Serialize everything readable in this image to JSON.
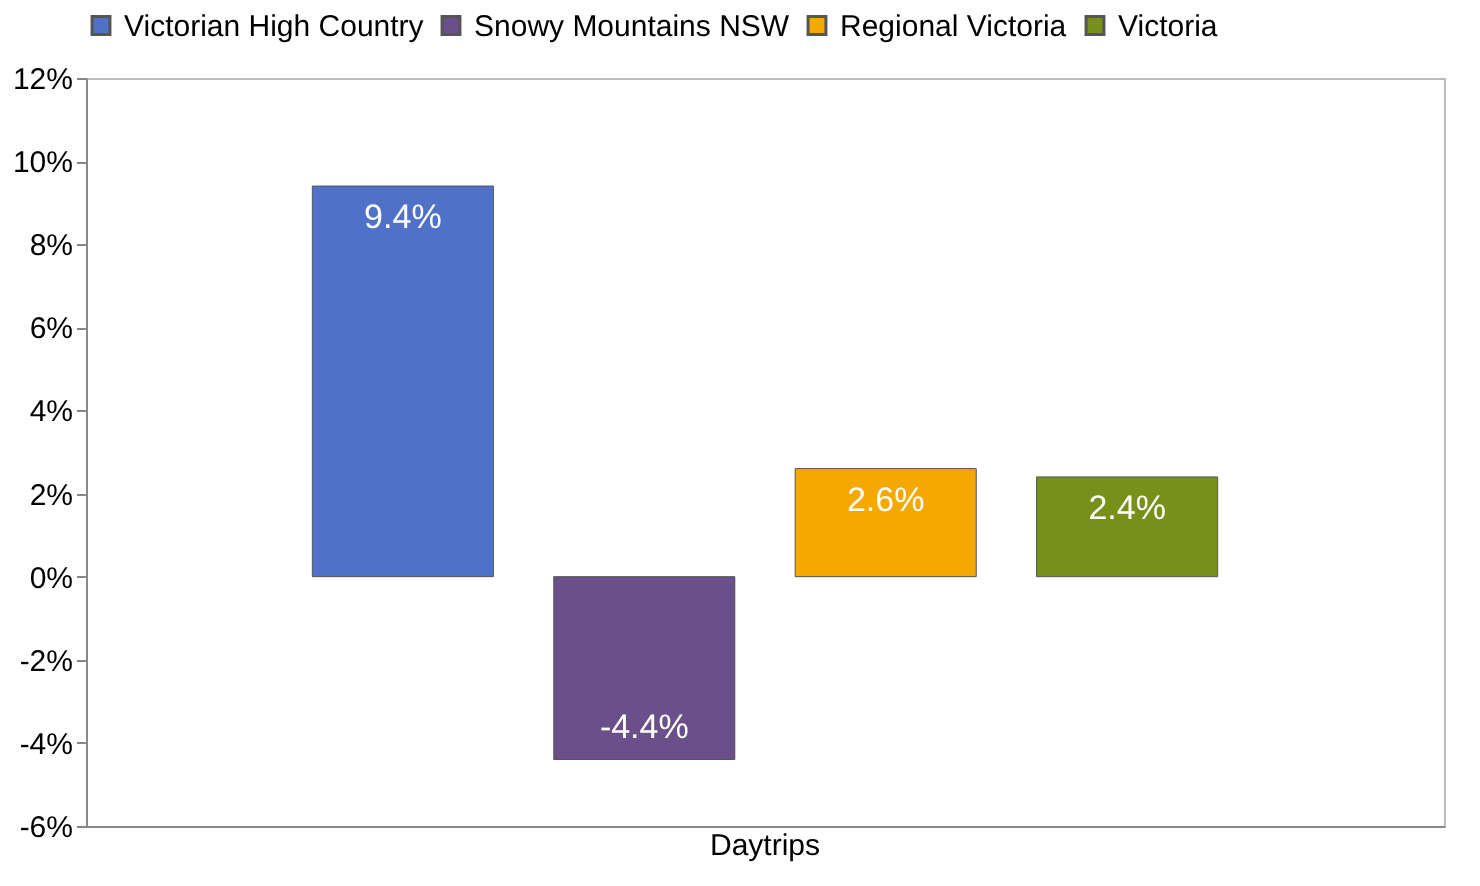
{
  "chart_data": {
    "type": "bar",
    "categories": [
      "Daytrips"
    ],
    "series": [
      {
        "name": "Victorian High Country",
        "color": "#4f72c8",
        "values": [
          9.4
        ],
        "value_labels": [
          "9.4%"
        ]
      },
      {
        "name": "Snowy Mountains NSW",
        "color": "#6a4f8a",
        "values": [
          -4.4
        ],
        "value_labels": [
          "-4.4%"
        ]
      },
      {
        "name": "Regional Victoria",
        "color": "#f5a800",
        "values": [
          2.6
        ],
        "value_labels": [
          "2.6%"
        ]
      },
      {
        "name": "Victoria",
        "color": "#76901a",
        "values": [
          2.4
        ],
        "value_labels": [
          "2.4%"
        ]
      }
    ],
    "ylim": [
      -6,
      12
    ],
    "yticks": [
      {
        "value": -6,
        "label": "-6%"
      },
      {
        "value": -4,
        "label": "-4%"
      },
      {
        "value": -2,
        "label": "-2%"
      },
      {
        "value": 0,
        "label": "0%"
      },
      {
        "value": 2,
        "label": "2%"
      },
      {
        "value": 4,
        "label": "4%"
      },
      {
        "value": 6,
        "label": "6%"
      },
      {
        "value": 8,
        "label": "8%"
      },
      {
        "value": 10,
        "label": "10%"
      },
      {
        "value": 12,
        "label": "12%"
      }
    ],
    "grid": false,
    "legend": "top"
  }
}
